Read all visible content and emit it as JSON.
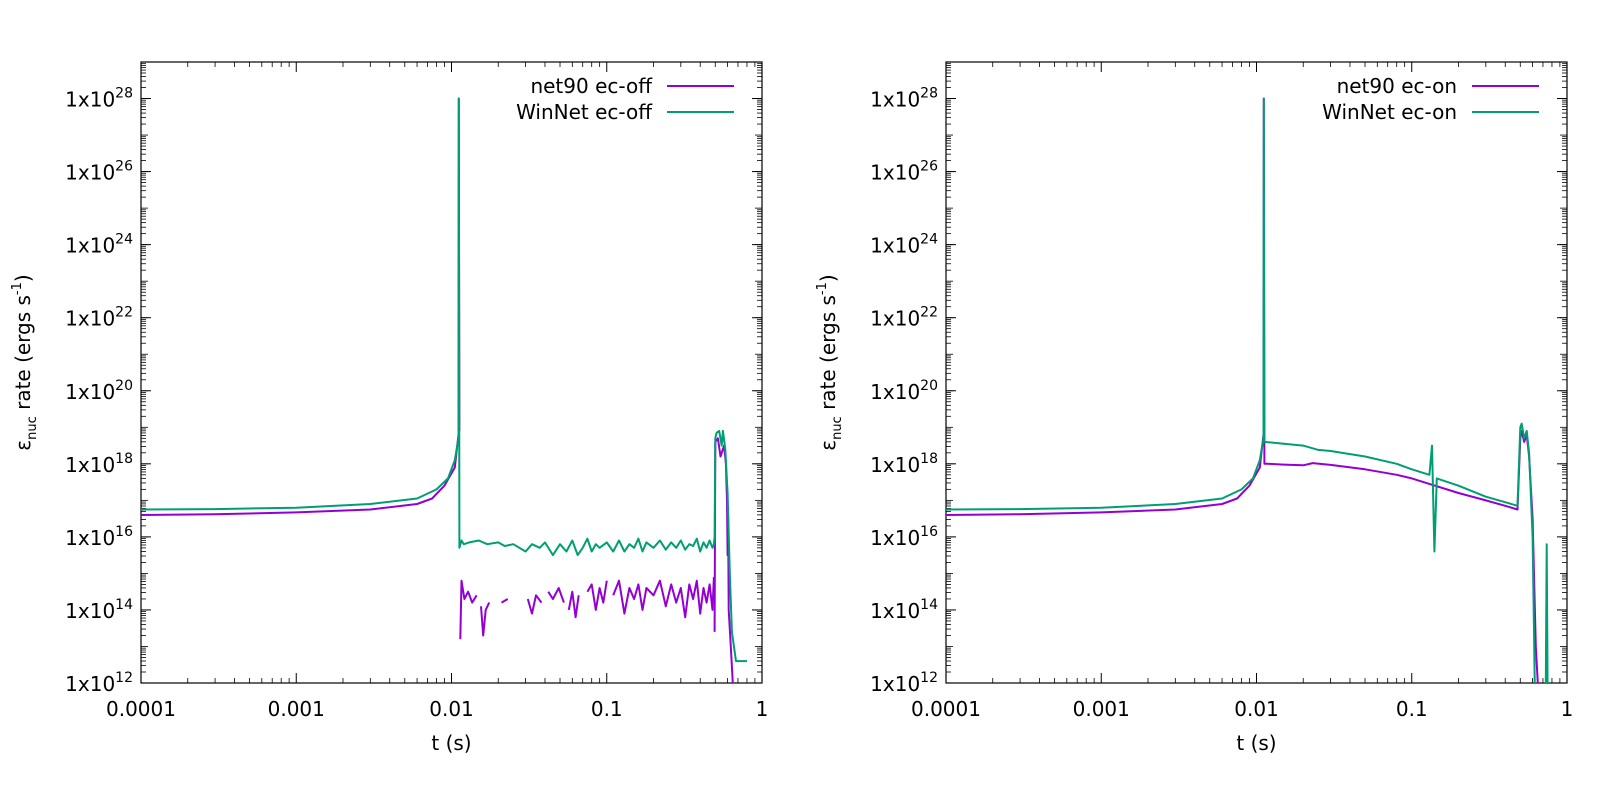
{
  "chart_data": [
    {
      "type": "line",
      "xlabel": "t (s)",
      "ylabel_parts": {
        "symbol": "ε",
        "sub": "nuc",
        "mid": " rate (ergs s",
        "sup": "-1",
        "end": ")"
      },
      "xscale": "log",
      "yscale": "log",
      "xlim": [
        0.0001,
        1
      ],
      "ylim": [
        1000000000000.0,
        1e+29
      ],
      "x_ticks": [
        "0.0001",
        "0.001",
        "0.01",
        "0.1",
        "1"
      ],
      "y_ticks": [
        {
          "base": "1x10",
          "exp": "12"
        },
        {
          "base": "1x10",
          "exp": "14"
        },
        {
          "base": "1x10",
          "exp": "16"
        },
        {
          "base": "1x10",
          "exp": "18"
        },
        {
          "base": "1x10",
          "exp": "20"
        },
        {
          "base": "1x10",
          "exp": "22"
        },
        {
          "base": "1x10",
          "exp": "24"
        },
        {
          "base": "1x10",
          "exp": "26"
        },
        {
          "base": "1x10",
          "exp": "28"
        }
      ],
      "legend_position": "top-right",
      "series": [
        {
          "name": "net90 ec-off",
          "color": "#9400d3",
          "segments": [
            [
              [
                0.0001,
                16.6
              ],
              [
                0.0003,
                16.62
              ],
              [
                0.001,
                16.67
              ],
              [
                0.003,
                16.75
              ],
              [
                0.006,
                16.9
              ],
              [
                0.0075,
                17.05
              ],
              [
                0.009,
                17.4
              ],
              [
                0.0105,
                17.9
              ],
              [
                0.0111,
                18.8
              ],
              [
                0.01115,
                28.0
              ],
              [
                0.01125,
                18.9
              ]
            ],
            [
              [
                0.0114,
                13.2
              ],
              [
                0.0116,
                14.8
              ],
              [
                0.0121,
                14.3
              ],
              [
                0.0128,
                14.5
              ],
              [
                0.0136,
                14.2
              ],
              [
                0.0145,
                14.4
              ]
            ],
            [
              [
                0.0155,
                14.1
              ],
              [
                0.016,
                13.3
              ],
              [
                0.0166,
                14.0
              ],
              [
                0.0175,
                14.2
              ]
            ],
            [
              [
                0.021,
                14.2
              ],
              [
                0.023,
                14.3
              ]
            ],
            [
              [
                0.031,
                14.3
              ],
              [
                0.033,
                13.9
              ],
              [
                0.035,
                14.4
              ],
              [
                0.038,
                14.2
              ]
            ],
            [
              [
                0.042,
                14.5
              ],
              [
                0.045,
                14.3
              ],
              [
                0.049,
                14.6
              ],
              [
                0.053,
                14.2
              ]
            ],
            [
              [
                0.057,
                14.0
              ],
              [
                0.06,
                14.5
              ],
              [
                0.063,
                13.8
              ],
              [
                0.066,
                14.4
              ]
            ],
            [
              [
                0.075,
                14.5
              ],
              [
                0.08,
                14.7
              ],
              [
                0.085,
                14.0
              ],
              [
                0.09,
                14.6
              ],
              [
                0.095,
                14.2
              ],
              [
                0.1,
                14.8
              ]
            ],
            [
              [
                0.11,
                14.4
              ],
              [
                0.12,
                14.8
              ],
              [
                0.13,
                13.9
              ],
              [
                0.14,
                14.6
              ],
              [
                0.15,
                14.3
              ],
              [
                0.16,
                14.7
              ],
              [
                0.17,
                14.0
              ],
              [
                0.18,
                14.6
              ],
              [
                0.2,
                14.4
              ],
              [
                0.22,
                14.8
              ],
              [
                0.24,
                14.1
              ],
              [
                0.26,
                14.7
              ],
              [
                0.28,
                14.2
              ],
              [
                0.3,
                14.6
              ],
              [
                0.32,
                13.8
              ],
              [
                0.34,
                14.7
              ],
              [
                0.36,
                14.3
              ],
              [
                0.38,
                14.8
              ],
              [
                0.4,
                13.9
              ],
              [
                0.42,
                14.6
              ],
              [
                0.44,
                14.2
              ],
              [
                0.46,
                14.7
              ],
              [
                0.48,
                14.0
              ],
              [
                0.49,
                14.9
              ]
            ],
            [
              [
                0.495,
                13.4
              ],
              [
                0.5,
                18.6
              ],
              [
                0.52,
                18.7
              ],
              [
                0.54,
                18.2
              ],
              [
                0.57,
                18.5
              ],
              [
                0.585,
                18.0
              ],
              [
                0.595,
                17.0
              ],
              [
                0.6,
                15.5
              ],
              [
                0.605,
                16.6
              ],
              [
                0.61,
                14.0
              ],
              [
                0.63,
                13.0
              ],
              [
                0.65,
                11.9
              ]
            ]
          ]
        },
        {
          "name": "WinNet ec-off",
          "color": "#009e73",
          "segments": [
            [
              [
                0.0001,
                16.75
              ],
              [
                0.0003,
                16.76
              ],
              [
                0.001,
                16.8
              ],
              [
                0.003,
                16.9
              ],
              [
                0.006,
                17.05
              ],
              [
                0.008,
                17.3
              ],
              [
                0.0095,
                17.6
              ],
              [
                0.0105,
                18.1
              ],
              [
                0.0111,
                18.7
              ],
              [
                0.01115,
                28.0
              ],
              [
                0.01125,
                15.7
              ],
              [
                0.0116,
                15.9
              ],
              [
                0.012,
                15.8
              ],
              [
                0.013,
                15.85
              ],
              [
                0.015,
                15.9
              ],
              [
                0.017,
                15.8
              ],
              [
                0.02,
                15.85
              ],
              [
                0.022,
                15.75
              ],
              [
                0.025,
                15.8
              ],
              [
                0.03,
                15.6
              ],
              [
                0.033,
                15.8
              ],
              [
                0.037,
                15.7
              ],
              [
                0.04,
                15.85
              ],
              [
                0.045,
                15.5
              ],
              [
                0.05,
                15.8
              ],
              [
                0.055,
                15.6
              ],
              [
                0.06,
                15.9
              ],
              [
                0.065,
                15.5
              ],
              [
                0.07,
                15.7
              ],
              [
                0.075,
                15.95
              ],
              [
                0.08,
                15.6
              ],
              [
                0.085,
                15.8
              ],
              [
                0.09,
                15.7
              ],
              [
                0.1,
                15.85
              ],
              [
                0.11,
                15.6
              ],
              [
                0.12,
                15.9
              ],
              [
                0.13,
                15.6
              ],
              [
                0.14,
                15.8
              ],
              [
                0.15,
                15.7
              ],
              [
                0.16,
                15.95
              ],
              [
                0.17,
                15.6
              ],
              [
                0.18,
                15.85
              ],
              [
                0.2,
                15.7
              ],
              [
                0.22,
                15.9
              ],
              [
                0.24,
                15.65
              ],
              [
                0.26,
                15.85
              ],
              [
                0.28,
                15.7
              ],
              [
                0.3,
                15.9
              ],
              [
                0.32,
                15.65
              ],
              [
                0.34,
                15.8
              ],
              [
                0.36,
                15.75
              ],
              [
                0.38,
                15.95
              ],
              [
                0.4,
                15.6
              ],
              [
                0.42,
                15.85
              ],
              [
                0.44,
                15.7
              ],
              [
                0.46,
                15.9
              ],
              [
                0.48,
                15.7
              ],
              [
                0.49,
                15.8
              ],
              [
                0.495,
                16.0
              ],
              [
                0.5,
                18.7
              ],
              [
                0.51,
                18.85
              ],
              [
                0.53,
                18.9
              ],
              [
                0.55,
                18.5
              ],
              [
                0.56,
                18.9
              ],
              [
                0.58,
                18.4
              ],
              [
                0.6,
                17.2
              ],
              [
                0.62,
                15.0
              ],
              [
                0.64,
                13.4
              ],
              [
                0.68,
                12.6
              ],
              [
                0.8,
                12.6
              ]
            ]
          ]
        }
      ]
    },
    {
      "type": "line",
      "xlabel": "t (s)",
      "ylabel_parts": {
        "symbol": "ε",
        "sub": "nuc",
        "mid": " rate (ergs s",
        "sup": "-1",
        "end": ")"
      },
      "xscale": "log",
      "yscale": "log",
      "xlim": [
        0.0001,
        1
      ],
      "ylim": [
        1000000000000.0,
        1e+29
      ],
      "x_ticks": [
        "0.0001",
        "0.001",
        "0.01",
        "0.1",
        "1"
      ],
      "y_ticks": [
        {
          "base": "1x10",
          "exp": "12"
        },
        {
          "base": "1x10",
          "exp": "14"
        },
        {
          "base": "1x10",
          "exp": "16"
        },
        {
          "base": "1x10",
          "exp": "18"
        },
        {
          "base": "1x10",
          "exp": "20"
        },
        {
          "base": "1x10",
          "exp": "22"
        },
        {
          "base": "1x10",
          "exp": "24"
        },
        {
          "base": "1x10",
          "exp": "26"
        },
        {
          "base": "1x10",
          "exp": "28"
        }
      ],
      "legend_position": "top-right",
      "series": [
        {
          "name": "net90 ec-on",
          "color": "#9400d3",
          "segments": [
            [
              [
                0.0001,
                16.6
              ],
              [
                0.0003,
                16.62
              ],
              [
                0.001,
                16.67
              ],
              [
                0.003,
                16.75
              ],
              [
                0.006,
                16.9
              ],
              [
                0.0075,
                17.05
              ],
              [
                0.009,
                17.4
              ],
              [
                0.0105,
                17.9
              ],
              [
                0.0111,
                18.8
              ],
              [
                0.01115,
                28.0
              ],
              [
                0.01125,
                18.0
              ],
              [
                0.0118,
                18.0
              ],
              [
                0.015,
                17.98
              ],
              [
                0.02,
                17.96
              ],
              [
                0.023,
                18.02
              ],
              [
                0.03,
                17.97
              ],
              [
                0.05,
                17.85
              ],
              [
                0.08,
                17.7
              ],
              [
                0.1,
                17.6
              ],
              [
                0.13,
                17.45
              ],
              [
                0.2,
                17.2
              ],
              [
                0.3,
                17.0
              ],
              [
                0.4,
                16.85
              ],
              [
                0.48,
                16.75
              ],
              [
                0.5,
                18.7
              ],
              [
                0.51,
                18.9
              ],
              [
                0.53,
                18.6
              ],
              [
                0.55,
                18.8
              ],
              [
                0.57,
                18.2
              ],
              [
                0.6,
                16.5
              ],
              [
                0.63,
                13.0
              ],
              [
                0.65,
                11.9
              ]
            ]
          ]
        },
        {
          "name": "WinNet ec-on",
          "color": "#009e73",
          "segments": [
            [
              [
                0.0001,
                16.75
              ],
              [
                0.0003,
                16.76
              ],
              [
                0.001,
                16.8
              ],
              [
                0.003,
                16.9
              ],
              [
                0.006,
                17.05
              ],
              [
                0.008,
                17.3
              ],
              [
                0.0095,
                17.6
              ],
              [
                0.0105,
                18.1
              ],
              [
                0.0111,
                18.7
              ],
              [
                0.01115,
                28.0
              ],
              [
                0.01125,
                18.6
              ],
              [
                0.015,
                18.55
              ],
              [
                0.02,
                18.5
              ],
              [
                0.025,
                18.38
              ],
              [
                0.03,
                18.35
              ],
              [
                0.05,
                18.2
              ],
              [
                0.08,
                18.0
              ],
              [
                0.1,
                17.85
              ],
              [
                0.13,
                17.7
              ],
              [
                0.135,
                18.5
              ],
              [
                0.14,
                15.6
              ],
              [
                0.145,
                17.6
              ],
              [
                0.2,
                17.4
              ],
              [
                0.3,
                17.1
              ],
              [
                0.4,
                16.95
              ],
              [
                0.48,
                16.85
              ],
              [
                0.5,
                19.0
              ],
              [
                0.51,
                19.1
              ],
              [
                0.53,
                18.7
              ],
              [
                0.55,
                18.9
              ],
              [
                0.57,
                18.3
              ],
              [
                0.6,
                16.0
              ],
              [
                0.62,
                11.9
              ]
            ],
            [
              [
                0.73,
                11.9
              ],
              [
                0.74,
                15.8
              ],
              [
                0.75,
                11.9
              ]
            ]
          ]
        }
      ]
    }
  ]
}
